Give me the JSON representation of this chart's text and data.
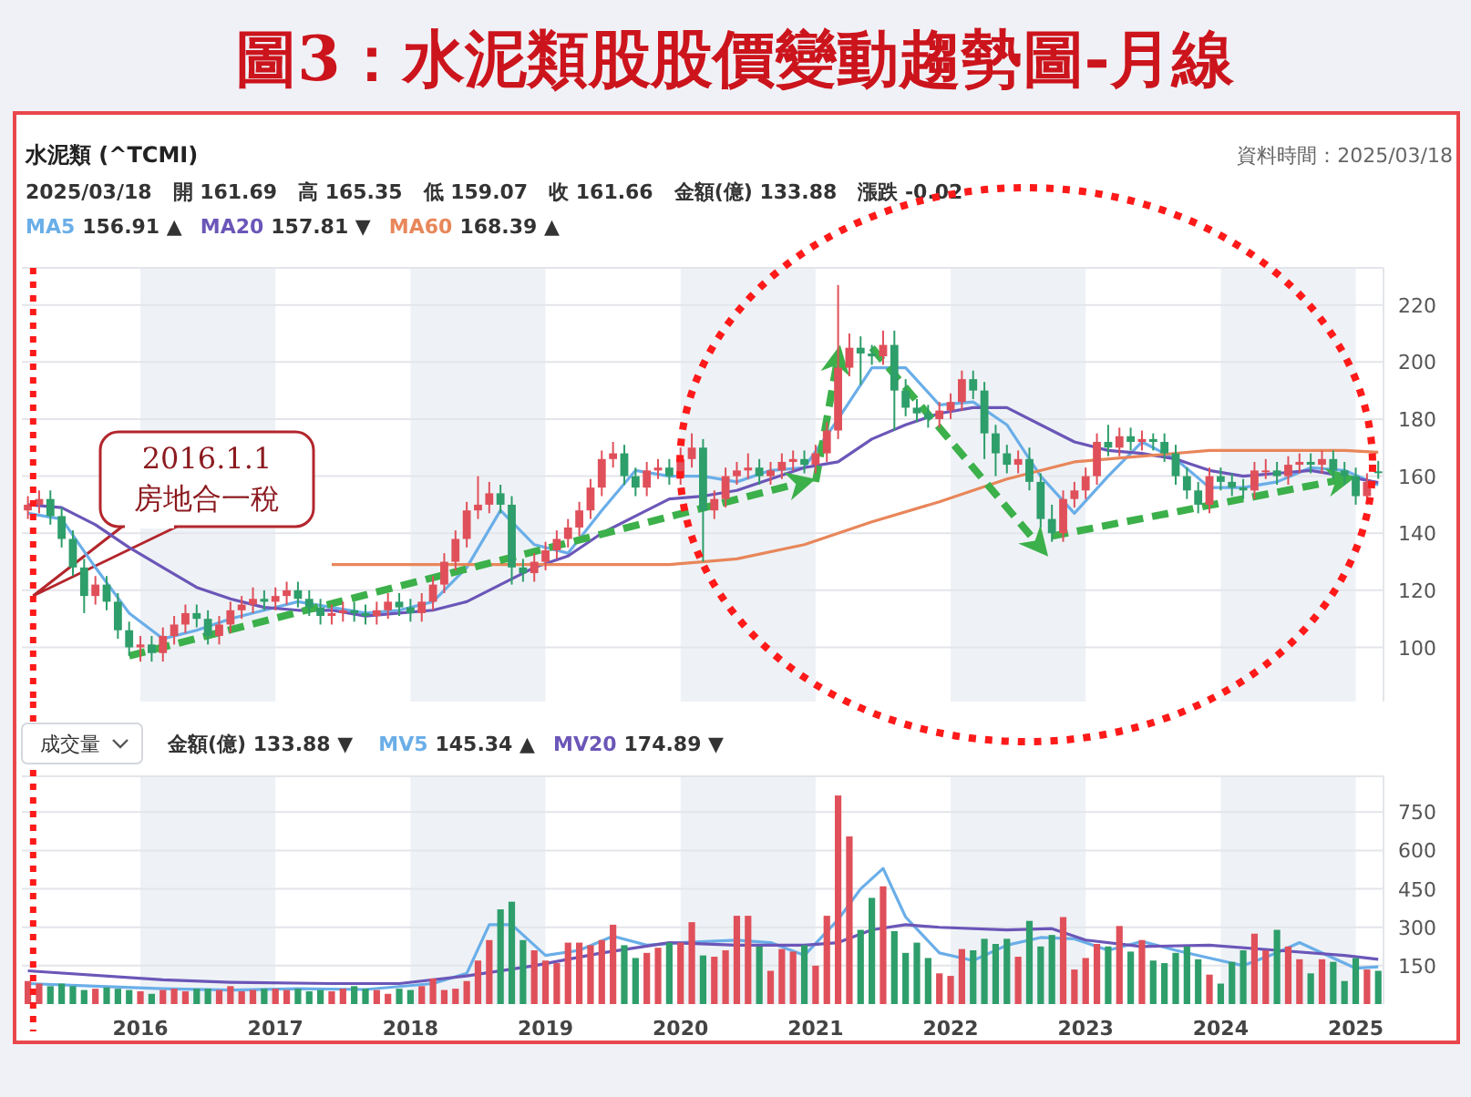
{
  "chart_data": [
    {
      "type": "candlestick",
      "title": "圖3：水泥類股股價變動趨勢圖-月線",
      "subtitle": "水泥類 (^TCMI)",
      "annotations": [
        "資料時間：2025/03/18",
        "2025/03/18   開 161.69   高 165.35   低 159.07   收 161.66   金額(億) 133.88   漲跌 -0.02",
        "156.91 ▲",
        "157.81 ▼",
        "168.39 ▲",
        "2016.1.1\n房地合一稅"
      ],
      "x": [
        "2015-03",
        "2015-04",
        "2015-05",
        "2015-06",
        "2015-07",
        "2015-08",
        "2015-09",
        "2015-10",
        "2015-11",
        "2015-12",
        "2016-01",
        "2016-02",
        "2016-03",
        "2016-04",
        "2016-05",
        "2016-06",
        "2016-07",
        "2016-08",
        "2016-09",
        "2016-10",
        "2016-11",
        "2016-12",
        "2017-01",
        "2017-02",
        "2017-03",
        "2017-04",
        "2017-05",
        "2017-06",
        "2017-07",
        "2017-08",
        "2017-09",
        "2017-10",
        "2017-11",
        "2017-12",
        "2018-01",
        "2018-02",
        "2018-03",
        "2018-04",
        "2018-05",
        "2018-06",
        "2018-07",
        "2018-08",
        "2018-09",
        "2018-10",
        "2018-11",
        "2018-12",
        "2019-01",
        "2019-02",
        "2019-03",
        "2019-04",
        "2019-05",
        "2019-06",
        "2019-07",
        "2019-08",
        "2019-09",
        "2019-10",
        "2019-11",
        "2019-12",
        "2020-01",
        "2020-02",
        "2020-03",
        "2020-04",
        "2020-05",
        "2020-06",
        "2020-07",
        "2020-08",
        "2020-09",
        "2020-10",
        "2020-11",
        "2020-12",
        "2021-01",
        "2021-02",
        "2021-03",
        "2021-04",
        "2021-05",
        "2021-06",
        "2021-07",
        "2021-08",
        "2021-09",
        "2021-10",
        "2021-11",
        "2021-12",
        "2022-01",
        "2022-02",
        "2022-03",
        "2022-04",
        "2022-05",
        "2022-06",
        "2022-07",
        "2022-08",
        "2022-09",
        "2022-10",
        "2022-11",
        "2022-12",
        "2023-01",
        "2023-02",
        "2023-03",
        "2023-04",
        "2023-05",
        "2023-06",
        "2023-07",
        "2023-08",
        "2023-09",
        "2023-10",
        "2023-11",
        "2023-12",
        "2024-01",
        "2024-02",
        "2024-03",
        "2024-04",
        "2024-05",
        "2024-06",
        "2024-07",
        "2024-08",
        "2024-09",
        "2024-10",
        "2024-11",
        "2024-12",
        "2025-01",
        "2025-02",
        "2025-03"
      ],
      "ohlc": [
        [
          148,
          153,
          145,
          150
        ],
        [
          150,
          155,
          147,
          152
        ],
        [
          152,
          155,
          143,
          146
        ],
        [
          146,
          149,
          135,
          138
        ],
        [
          138,
          141,
          125,
          128
        ],
        [
          128,
          131,
          112,
          118
        ],
        [
          118,
          125,
          115,
          122
        ],
        [
          122,
          125,
          113,
          116
        ],
        [
          116,
          119,
          103,
          106
        ],
        [
          106,
          109,
          97,
          100
        ],
        [
          100,
          104,
          95,
          101
        ],
        [
          101,
          104,
          95,
          98
        ],
        [
          98,
          107,
          95,
          104
        ],
        [
          104,
          111,
          101,
          108
        ],
        [
          108,
          115,
          105,
          112
        ],
        [
          112,
          115,
          107,
          110
        ],
        [
          110,
          113,
          101,
          104
        ],
        [
          104,
          111,
          101,
          108
        ],
        [
          108,
          116,
          105,
          113
        ],
        [
          113,
          118,
          110,
          115
        ],
        [
          115,
          121,
          112,
          117
        ],
        [
          117,
          120,
          113,
          116
        ],
        [
          116,
          121,
          113,
          118
        ],
        [
          118,
          123,
          115,
          120
        ],
        [
          120,
          123,
          114,
          117
        ],
        [
          117,
          120,
          111,
          114
        ],
        [
          114,
          117,
          108,
          111
        ],
        [
          111,
          115,
          108,
          112
        ],
        [
          112,
          116,
          109,
          113
        ],
        [
          113,
          116,
          109,
          112
        ],
        [
          112,
          115,
          108,
          111
        ],
        [
          111,
          116,
          108,
          113
        ],
        [
          113,
          119,
          110,
          116
        ],
        [
          116,
          119,
          111,
          114
        ],
        [
          114,
          117,
          109,
          112
        ],
        [
          112,
          119,
          109,
          116
        ],
        [
          116,
          125,
          113,
          122
        ],
        [
          122,
          133,
          119,
          130
        ],
        [
          130,
          141,
          127,
          138
        ],
        [
          138,
          151,
          135,
          148
        ],
        [
          148,
          160,
          145,
          150
        ],
        [
          150,
          158,
          147,
          154
        ],
        [
          154,
          157,
          147,
          150
        ],
        [
          150,
          153,
          122,
          128
        ],
        [
          128,
          131,
          123,
          126
        ],
        [
          126,
          133,
          123,
          130
        ],
        [
          130,
          137,
          127,
          134
        ],
        [
          134,
          141,
          131,
          138
        ],
        [
          138,
          145,
          135,
          142
        ],
        [
          142,
          151,
          139,
          148
        ],
        [
          148,
          159,
          145,
          156
        ],
        [
          156,
          169,
          153,
          166
        ],
        [
          166,
          172,
          163,
          168
        ],
        [
          168,
          171,
          157,
          160
        ],
        [
          160,
          163,
          153,
          156
        ],
        [
          156,
          165,
          153,
          162
        ],
        [
          162,
          166,
          159,
          163
        ],
        [
          163,
          166,
          157,
          160
        ],
        [
          160,
          170,
          157,
          166
        ],
        [
          166,
          175,
          163,
          170
        ],
        [
          170,
          173,
          130,
          148
        ],
        [
          148,
          155,
          145,
          152
        ],
        [
          152,
          163,
          149,
          160
        ],
        [
          160,
          165,
          157,
          162
        ],
        [
          162,
          168,
          159,
          163
        ],
        [
          163,
          166,
          157,
          160
        ],
        [
          160,
          165,
          157,
          162
        ],
        [
          162,
          168,
          159,
          165
        ],
        [
          165,
          169,
          162,
          166
        ],
        [
          166,
          169,
          161,
          164
        ],
        [
          164,
          171,
          161,
          168
        ],
        [
          168,
          179,
          165,
          176
        ],
        [
          176,
          227,
          173,
          198
        ],
        [
          198,
          210,
          195,
          205
        ],
        [
          205,
          209,
          192,
          203
        ],
        [
          203,
          206,
          199,
          202
        ],
        [
          202,
          211,
          199,
          206
        ],
        [
          206,
          211,
          176,
          190
        ],
        [
          190,
          194,
          181,
          184
        ],
        [
          184,
          187,
          179,
          182
        ],
        [
          182,
          185,
          177,
          180
        ],
        [
          180,
          186,
          177,
          183
        ],
        [
          183,
          189,
          180,
          186
        ],
        [
          186,
          197,
          183,
          194
        ],
        [
          194,
          197,
          187,
          190
        ],
        [
          190,
          193,
          166,
          175
        ],
        [
          175,
          178,
          160,
          168
        ],
        [
          168,
          171,
          161,
          164
        ],
        [
          164,
          169,
          161,
          166
        ],
        [
          166,
          170,
          155,
          158
        ],
        [
          158,
          161,
          142,
          145
        ],
        [
          145,
          150,
          137,
          140
        ],
        [
          140,
          155,
          137,
          152
        ],
        [
          152,
          158,
          149,
          155
        ],
        [
          155,
          163,
          152,
          160
        ],
        [
          160,
          175,
          157,
          172
        ],
        [
          172,
          178,
          167,
          170
        ],
        [
          170,
          177,
          167,
          174
        ],
        [
          174,
          177,
          169,
          172
        ],
        [
          172,
          176,
          169,
          173
        ],
        [
          173,
          175,
          169,
          172
        ],
        [
          172,
          175,
          165,
          168
        ],
        [
          168,
          171,
          157,
          160
        ],
        [
          160,
          163,
          152,
          155
        ],
        [
          155,
          158,
          147,
          150
        ],
        [
          150,
          163,
          147,
          160
        ],
        [
          160,
          163,
          155,
          158
        ],
        [
          158,
          161,
          153,
          156
        ],
        [
          156,
          159,
          152,
          155
        ],
        [
          155,
          165,
          152,
          162
        ],
        [
          162,
          166,
          159,
          162
        ],
        [
          162,
          165,
          157,
          160
        ],
        [
          160,
          167,
          157,
          164
        ],
        [
          164,
          168,
          161,
          165
        ],
        [
          165,
          168,
          161,
          164
        ],
        [
          164,
          169,
          161,
          166
        ],
        [
          166,
          169,
          159,
          162
        ],
        [
          162,
          165,
          157,
          160
        ],
        [
          160,
          163,
          150,
          153
        ],
        [
          153,
          161,
          150,
          158
        ],
        [
          161.69,
          165.35,
          159.07,
          161.66
        ]
      ],
      "colors": [
        "#e0505a",
        "#e0505a",
        "#2e9e6a",
        "#2e9e6a",
        "#2e9e6a",
        "#2e9e6a",
        "#e0505a",
        "#2e9e6a",
        "#2e9e6a",
        "#2e9e6a",
        "#e0505a",
        "#2e9e6a",
        "#e0505a",
        "#e0505a",
        "#e0505a",
        "#2e9e6a",
        "#2e9e6a",
        "#e0505a",
        "#e0505a",
        "#e0505a",
        "#e0505a",
        "#2e9e6a",
        "#e0505a",
        "#e0505a",
        "#2e9e6a",
        "#2e9e6a",
        "#2e9e6a",
        "#e0505a",
        "#e0505a",
        "#2e9e6a",
        "#2e9e6a",
        "#e0505a",
        "#e0505a",
        "#2e9e6a",
        "#2e9e6a",
        "#e0505a",
        "#e0505a",
        "#e0505a",
        "#e0505a",
        "#e0505a",
        "#e0505a",
        "#e0505a",
        "#2e9e6a",
        "#2e9e6a",
        "#2e9e6a",
        "#e0505a",
        "#e0505a",
        "#e0505a",
        "#e0505a",
        "#e0505a",
        "#e0505a",
        "#e0505a",
        "#e0505a",
        "#2e9e6a",
        "#2e9e6a",
        "#e0505a",
        "#e0505a",
        "#2e9e6a",
        "#e0505a",
        "#e0505a",
        "#2e9e6a",
        "#e0505a",
        "#e0505a",
        "#e0505a",
        "#e0505a",
        "#2e9e6a",
        "#e0505a",
        "#e0505a",
        "#e0505a",
        "#2e9e6a",
        "#e0505a",
        "#e0505a",
        "#e0505a",
        "#e0505a",
        "#2e9e6a",
        "#2e9e6a",
        "#e0505a",
        "#2e9e6a",
        "#2e9e6a",
        "#2e9e6a",
        "#2e9e6a",
        "#e0505a",
        "#e0505a",
        "#e0505a",
        "#2e9e6a",
        "#2e9e6a",
        "#2e9e6a",
        "#2e9e6a",
        "#e0505a",
        "#2e9e6a",
        "#2e9e6a",
        "#2e9e6a",
        "#e0505a",
        "#e0505a",
        "#e0505a",
        "#e0505a",
        "#2e9e6a",
        "#e0505a",
        "#2e9e6a",
        "#e0505a",
        "#2e9e6a",
        "#2e9e6a",
        "#2e9e6a",
        "#2e9e6a",
        "#2e9e6a",
        "#e0505a",
        "#2e9e6a",
        "#2e9e6a",
        "#2e9e6a",
        "#e0505a",
        "#e0505a",
        "#2e9e6a",
        "#e0505a",
        "#e0505a",
        "#2e9e6a",
        "#e0505a",
        "#2e9e6a",
        "#2e9e6a",
        "#2e9e6a",
        "#e0505a",
        "#2e9e6a"
      ],
      "series": [
        {
          "name": "MA5",
          "type": "line",
          "color": "#6aaee8",
          "x": [
            "2015-03",
            "2015-06",
            "2015-09",
            "2015-12",
            "2016-03",
            "2016-06",
            "2016-09",
            "2016-12",
            "2017-03",
            "2017-06",
            "2017-09",
            "2017-12",
            "2018-03",
            "2018-06",
            "2018-09",
            "2018-12",
            "2019-03",
            "2019-06",
            "2019-09",
            "2019-12",
            "2020-03",
            "2020-06",
            "2020-09",
            "2020-12",
            "2021-03",
            "2021-06",
            "2021-09",
            "2021-12",
            "2022-03",
            "2022-06",
            "2022-09",
            "2022-12",
            "2023-03",
            "2023-06",
            "2023-09",
            "2023-12",
            "2024-03",
            "2024-06",
            "2024-09",
            "2024-12",
            "2025-03"
          ],
          "values": [
            147,
            145,
            128,
            112,
            103,
            106,
            110,
            113,
            116,
            114,
            112,
            113,
            116,
            128,
            148,
            136,
            133,
            148,
            162,
            160,
            160,
            158,
            162,
            163,
            180,
            198,
            198,
            185,
            186,
            178,
            160,
            147,
            160,
            172,
            166,
            156,
            156,
            158,
            163,
            162,
            156.91
          ]
        },
        {
          "name": "MA20",
          "type": "line",
          "color": "#6b56b8",
          "x": [
            "2015-03",
            "2015-06",
            "2015-09",
            "2015-12",
            "2016-03",
            "2016-06",
            "2016-09",
            "2016-12",
            "2017-03",
            "2017-06",
            "2017-09",
            "2017-12",
            "2018-03",
            "2018-06",
            "2018-09",
            "2018-12",
            "2019-03",
            "2019-06",
            "2019-09",
            "2019-12",
            "2020-03",
            "2020-06",
            "2020-09",
            "2020-12",
            "2021-03",
            "2021-06",
            "2021-09",
            "2021-12",
            "2022-03",
            "2022-06",
            "2022-09",
            "2022-12",
            "2023-03",
            "2023-06",
            "2023-09",
            "2023-12",
            "2024-03",
            "2024-06",
            "2024-09",
            "2024-12",
            "2025-03"
          ],
          "values": [
            150,
            149,
            143,
            135,
            128,
            121,
            117,
            114,
            113,
            113,
            111,
            112,
            113,
            116,
            122,
            128,
            132,
            140,
            146,
            152,
            153,
            155,
            159,
            163,
            165,
            173,
            178,
            182,
            184,
            184,
            178,
            172,
            169,
            168,
            166,
            162,
            160,
            161,
            162,
            160,
            157.81
          ]
        },
        {
          "name": "MA60",
          "type": "line",
          "color": "#e8865a",
          "x": [
            "2017-06",
            "2017-12",
            "2018-06",
            "2018-12",
            "2019-06",
            "2019-12",
            "2020-06",
            "2020-12",
            "2021-06",
            "2021-12",
            "2022-06",
            "2022-12",
            "2023-06",
            "2023-12",
            "2024-06",
            "2024-12",
            "2025-03"
          ],
          "values": [
            129,
            129,
            129,
            129,
            129,
            129,
            131,
            136,
            144,
            151,
            159,
            165,
            167,
            169,
            169,
            169,
            168.39
          ]
        },
        {
          "type": "line",
          "color": "#3cb04a",
          "line_style": "dashed",
          "x": [
            "2015-12",
            "2020-12"
          ],
          "values": [
            97,
            158
          ]
        },
        {
          "type": "line",
          "color": "#3cb04a",
          "line_style": "dashed",
          "x": [
            "2021-01",
            "2021-03"
          ],
          "values": [
            158,
            202
          ]
        },
        {
          "type": "line",
          "color": "#3cb04a",
          "line_style": "dashed",
          "x": [
            "2021-06",
            "2022-09"
          ],
          "values": [
            205,
            135
          ]
        },
        {
          "type": "line",
          "color": "#3cb04a",
          "line_style": "dashed",
          "x": [
            "2022-10",
            "2024-12"
          ],
          "values": [
            139,
            159
          ]
        }
      ],
      "xlim": [
        "2015-02-15",
        "2025-03-15"
      ],
      "ylim": [
        81,
        233
      ],
      "yticks": [
        100,
        120,
        140,
        160,
        180,
        200,
        220
      ],
      "bands": [
        {
          "axis": "x",
          "from": "2016-01",
          "to": "2017-01",
          "color": "#eef2f6"
        },
        {
          "axis": "x",
          "from": "2018-01",
          "to": "2019-01",
          "color": "#eef2f6"
        },
        {
          "axis": "x",
          "from": "2020-01",
          "to": "2021-01",
          "color": "#eef2f6"
        },
        {
          "axis": "x",
          "from": "2022-01",
          "to": "2023-01",
          "color": "#eef2f6"
        },
        {
          "axis": "x",
          "from": "2024-01",
          "to": "2025-01",
          "color": "#eef2f6"
        }
      ],
      "ref_lines": [
        {
          "axis": "x",
          "value": "2015-03-15",
          "color": "#ff1a1a",
          "line_style": "dotted"
        }
      ],
      "grid": "y",
      "legend": "top left",
      "tick_labels": "y"
    },
    {
      "type": "bar",
      "annotations": [
        "成交量",
        "金額(億) 133.88 ▼",
        "145.34 ▲",
        "174.89 ▼"
      ],
      "x": [
        "2015-03",
        "2015-04",
        "2015-05",
        "2015-06",
        "2015-07",
        "2015-08",
        "2015-09",
        "2015-10",
        "2015-11",
        "2015-12",
        "2016-01",
        "2016-02",
        "2016-03",
        "2016-04",
        "2016-05",
        "2016-06",
        "2016-07",
        "2016-08",
        "2016-09",
        "2016-10",
        "2016-11",
        "2016-12",
        "2017-01",
        "2017-02",
        "2017-03",
        "2017-04",
        "2017-05",
        "2017-06",
        "2017-07",
        "2017-08",
        "2017-09",
        "2017-10",
        "2017-11",
        "2017-12",
        "2018-01",
        "2018-02",
        "2018-03",
        "2018-04",
        "2018-05",
        "2018-06",
        "2018-07",
        "2018-08",
        "2018-09",
        "2018-10",
        "2018-11",
        "2018-12",
        "2019-01",
        "2019-02",
        "2019-03",
        "2019-04",
        "2019-05",
        "2019-06",
        "2019-07",
        "2019-08",
        "2019-09",
        "2019-10",
        "2019-11",
        "2019-12",
        "2020-01",
        "2020-02",
        "2020-03",
        "2020-04",
        "2020-05",
        "2020-06",
        "2020-07",
        "2020-08",
        "2020-09",
        "2020-10",
        "2020-11",
        "2020-12",
        "2021-01",
        "2021-02",
        "2021-03",
        "2021-04",
        "2021-05",
        "2021-06",
        "2021-07",
        "2021-08",
        "2021-09",
        "2021-10",
        "2021-11",
        "2021-12",
        "2022-01",
        "2022-02",
        "2022-03",
        "2022-04",
        "2022-05",
        "2022-06",
        "2022-07",
        "2022-08",
        "2022-09",
        "2022-10",
        "2022-11",
        "2022-12",
        "2023-01",
        "2023-02",
        "2023-03",
        "2023-04",
        "2023-05",
        "2023-06",
        "2023-07",
        "2023-08",
        "2023-09",
        "2023-10",
        "2023-11",
        "2023-12",
        "2024-01",
        "2024-02",
        "2024-03",
        "2024-04",
        "2024-05",
        "2024-06",
        "2024-07",
        "2024-08",
        "2024-09",
        "2024-10",
        "2024-11",
        "2024-12",
        "2025-01",
        "2025-02",
        "2025-03"
      ],
      "values": [
        90,
        80,
        70,
        80,
        70,
        55,
        60,
        65,
        60,
        55,
        50,
        40,
        55,
        60,
        50,
        60,
        60,
        55,
        70,
        50,
        55,
        60,
        60,
        55,
        60,
        50,
        55,
        50,
        60,
        70,
        60,
        55,
        40,
        60,
        55,
        70,
        100,
        55,
        60,
        90,
        170,
        250,
        370,
        400,
        250,
        210,
        170,
        160,
        240,
        240,
        230,
        250,
        310,
        230,
        180,
        200,
        220,
        240,
        240,
        320,
        190,
        185,
        210,
        345,
        345,
        225,
        130,
        215,
        205,
        230,
        150,
        345,
        815,
        655,
        290,
        415,
        460,
        285,
        200,
        240,
        180,
        120,
        110,
        215,
        210,
        255,
        235,
        255,
        185,
        325,
        225,
        270,
        340,
        135,
        180,
        235,
        225,
        305,
        205,
        250,
        170,
        160,
        200,
        225,
        175,
        115,
        80,
        165,
        210,
        275,
        210,
        290,
        225,
        175,
        120,
        175,
        165,
        90,
        180,
        135,
        130
      ],
      "colors": [
        "#e0505a",
        "#e0505a",
        "#2e9e6a",
        "#2e9e6a",
        "#2e9e6a",
        "#2e9e6a",
        "#e0505a",
        "#2e9e6a",
        "#2e9e6a",
        "#2e9e6a",
        "#e0505a",
        "#2e9e6a",
        "#e0505a",
        "#e0505a",
        "#e0505a",
        "#2e9e6a",
        "#2e9e6a",
        "#e0505a",
        "#e0505a",
        "#e0505a",
        "#e0505a",
        "#2e9e6a",
        "#e0505a",
        "#e0505a",
        "#2e9e6a",
        "#2e9e6a",
        "#2e9e6a",
        "#e0505a",
        "#e0505a",
        "#2e9e6a",
        "#2e9e6a",
        "#e0505a",
        "#e0505a",
        "#2e9e6a",
        "#2e9e6a",
        "#e0505a",
        "#e0505a",
        "#e0505a",
        "#e0505a",
        "#e0505a",
        "#e0505a",
        "#e0505a",
        "#2e9e6a",
        "#2e9e6a",
        "#2e9e6a",
        "#e0505a",
        "#e0505a",
        "#e0505a",
        "#e0505a",
        "#e0505a",
        "#e0505a",
        "#e0505a",
        "#e0505a",
        "#2e9e6a",
        "#2e9e6a",
        "#e0505a",
        "#e0505a",
        "#2e9e6a",
        "#e0505a",
        "#e0505a",
        "#2e9e6a",
        "#e0505a",
        "#e0505a",
        "#e0505a",
        "#e0505a",
        "#2e9e6a",
        "#e0505a",
        "#e0505a",
        "#e0505a",
        "#2e9e6a",
        "#e0505a",
        "#e0505a",
        "#e0505a",
        "#e0505a",
        "#2e9e6a",
        "#2e9e6a",
        "#e0505a",
        "#2e9e6a",
        "#2e9e6a",
        "#2e9e6a",
        "#2e9e6a",
        "#e0505a",
        "#e0505a",
        "#e0505a",
        "#2e9e6a",
        "#2e9e6a",
        "#2e9e6a",
        "#2e9e6a",
        "#e0505a",
        "#2e9e6a",
        "#2e9e6a",
        "#2e9e6a",
        "#e0505a",
        "#e0505a",
        "#e0505a",
        "#e0505a",
        "#2e9e6a",
        "#e0505a",
        "#2e9e6a",
        "#e0505a",
        "#2e9e6a",
        "#2e9e6a",
        "#2e9e6a",
        "#2e9e6a",
        "#2e9e6a",
        "#e0505a",
        "#2e9e6a",
        "#2e9e6a",
        "#2e9e6a",
        "#e0505a",
        "#e0505a",
        "#2e9e6a",
        "#e0505a",
        "#e0505a",
        "#2e9e6a",
        "#e0505a",
        "#2e9e6a",
        "#2e9e6a",
        "#2e9e6a",
        "#e0505a",
        "#2e9e6a"
      ],
      "series": [
        {
          "name": "MV5",
          "type": "line",
          "color": "#6aaee8",
          "x": [
            "2015-03",
            "2015-09",
            "2016-03",
            "2016-09",
            "2017-03",
            "2017-09",
            "2018-03",
            "2018-06",
            "2018-08",
            "2018-10",
            "2019-01",
            "2019-04",
            "2019-07",
            "2019-10",
            "2020-01",
            "2020-06",
            "2020-09",
            "2020-12",
            "2021-03",
            "2021-05",
            "2021-07",
            "2021-09",
            "2021-12",
            "2022-03",
            "2022-06",
            "2022-09",
            "2022-12",
            "2023-03",
            "2023-06",
            "2023-09",
            "2023-12",
            "2024-03",
            "2024-06",
            "2024-08",
            "2024-11",
            "2025-01",
            "2025-03"
          ],
          "values": [
            80,
            70,
            60,
            55,
            60,
            57,
            80,
            120,
            310,
            310,
            190,
            210,
            265,
            230,
            240,
            250,
            240,
            190,
            330,
            450,
            530,
            340,
            200,
            170,
            230,
            260,
            255,
            210,
            245,
            210,
            180,
            150,
            200,
            240,
            180,
            140,
            145.34
          ]
        },
        {
          "name": "MV20",
          "type": "line",
          "color": "#6b56b8",
          "x": [
            "2015-03",
            "2016-03",
            "2016-09",
            "2017-06",
            "2017-12",
            "2018-06",
            "2018-12",
            "2019-06",
            "2019-12",
            "2020-06",
            "2020-12",
            "2021-03",
            "2021-06",
            "2021-09",
            "2021-12",
            "2022-06",
            "2022-10",
            "2023-01",
            "2023-06",
            "2023-12",
            "2024-06",
            "2024-12",
            "2025-03"
          ],
          "values": [
            130,
            95,
            85,
            80,
            80,
            110,
            150,
            200,
            240,
            230,
            230,
            240,
            290,
            310,
            300,
            290,
            295,
            250,
            225,
            230,
            210,
            190,
            174.89
          ]
        }
      ],
      "xlim": [
        "2015-02-15",
        "2025-03-15"
      ],
      "ylim": [
        0,
        890
      ],
      "yticks": [
        150,
        300,
        450,
        600,
        750
      ],
      "xticks": [
        {
          "value": "2016-01",
          "label": "2016"
        },
        {
          "value": "2017-01",
          "label": "2017"
        },
        {
          "value": "2018-01",
          "label": "2018"
        },
        {
          "value": "2019-01",
          "label": "2019"
        },
        {
          "value": "2020-01",
          "label": "2020"
        },
        {
          "value": "2021-01",
          "label": "2021"
        },
        {
          "value": "2022-01",
          "label": "2022"
        },
        {
          "value": "2023-01",
          "label": "2023"
        },
        {
          "value": "2024-01",
          "label": "2024"
        },
        {
          "value": "2025-01",
          "label": "2025"
        }
      ],
      "bands": [
        {
          "axis": "x",
          "from": "2016-01",
          "to": "2017-01",
          "color": "#eef2f6"
        },
        {
          "axis": "x",
          "from": "2018-01",
          "to": "2019-01",
          "color": "#eef2f6"
        },
        {
          "axis": "x",
          "from": "2020-01",
          "to": "2021-01",
          "color": "#eef2f6"
        },
        {
          "axis": "x",
          "from": "2022-01",
          "to": "2023-01",
          "color": "#eef2f6"
        },
        {
          "axis": "x",
          "from": "2024-01",
          "to": "2025-01",
          "color": "#eef2f6"
        }
      ],
      "ref_lines": [
        {
          "axis": "x",
          "value": "2015-03-15",
          "color": "#ff1a1a",
          "line_style": "dotted"
        }
      ],
      "grid": "y",
      "legend": "top left"
    }
  ]
}
